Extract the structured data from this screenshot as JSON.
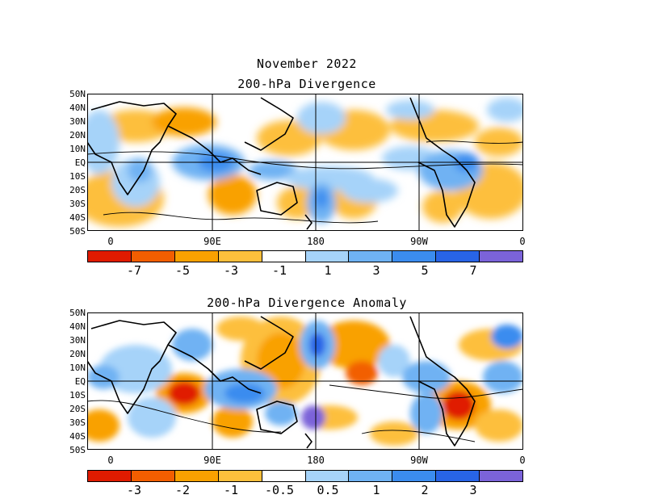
{
  "title": "November 2022",
  "panels": [
    {
      "subtitle": "200-hPa Divergence",
      "lat_labels": [
        "50N",
        "40N",
        "30N",
        "20N",
        "10N",
        "EQ",
        "10S",
        "20S",
        "30S",
        "40S",
        "50S"
      ],
      "lon_labels": [
        "0",
        "90E",
        "180",
        "90W",
        "0"
      ],
      "colorbar": {
        "colors": [
          "#e01b00",
          "#f25e00",
          "#f9a100",
          "#fdbf3c",
          "#ffffff",
          "#a6d3f9",
          "#6fb2f3",
          "#3b8cef",
          "#2864e6",
          "#7b63d9"
        ],
        "labels": [
          "-7",
          "-5",
          "-3",
          "-1",
          "1",
          "3",
          "5",
          "7"
        ]
      }
    },
    {
      "subtitle": "200-hPa Divergence Anomaly",
      "lat_labels": [
        "50N",
        "40N",
        "30N",
        "20N",
        "10N",
        "EQ",
        "10S",
        "20S",
        "30S",
        "40S",
        "50S"
      ],
      "lon_labels": [
        "0",
        "90E",
        "180",
        "90W",
        "0"
      ],
      "colorbar": {
        "colors": [
          "#e01b00",
          "#f25e00",
          "#f9a100",
          "#fdbf3c",
          "#ffffff",
          "#a6d3f9",
          "#6fb2f3",
          "#3b8cef",
          "#2864e6",
          "#7b63d9"
        ],
        "labels": [
          "-3",
          "-2",
          "-1",
          "-0.5",
          "0.5",
          "1",
          "2",
          "3"
        ]
      }
    }
  ]
}
